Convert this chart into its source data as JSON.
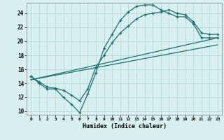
{
  "xlabel": "Humidex (Indice chaleur)",
  "bg_color": "#d8f0f0",
  "grid_color": "#b8d8d8",
  "line_color": "#1a7070",
  "xlim": [
    -0.5,
    23.5
  ],
  "ylim": [
    9.5,
    25.5
  ],
  "yticks": [
    10,
    12,
    14,
    16,
    18,
    20,
    22,
    24
  ],
  "xticks": [
    0,
    1,
    2,
    3,
    4,
    5,
    6,
    7,
    8,
    9,
    10,
    11,
    12,
    13,
    14,
    15,
    16,
    17,
    18,
    19,
    20,
    21,
    22,
    23
  ],
  "line1_x": [
    0,
    1,
    2,
    3,
    4,
    5,
    6,
    7,
    8,
    9,
    10,
    11,
    12,
    13,
    14,
    15,
    16,
    17,
    18,
    19,
    20,
    21,
    22,
    23
  ],
  "line1_y": [
    15.0,
    14.0,
    13.2,
    13.2,
    12.0,
    11.0,
    9.8,
    12.5,
    15.5,
    19.0,
    21.0,
    23.0,
    24.2,
    25.0,
    25.2,
    25.2,
    24.5,
    24.0,
    23.5,
    23.5,
    22.5,
    20.5,
    20.5,
    20.5
  ],
  "line2_x": [
    0,
    1,
    2,
    3,
    4,
    5,
    6,
    7,
    8,
    9,
    10,
    11,
    12,
    13,
    14,
    15,
    16,
    17,
    18,
    19,
    20,
    21,
    22,
    23
  ],
  "line2_y": [
    15.0,
    14.2,
    13.5,
    13.3,
    13.0,
    12.3,
    11.5,
    13.2,
    16.3,
    18.0,
    19.8,
    21.2,
    22.2,
    23.2,
    23.8,
    24.0,
    24.2,
    24.5,
    24.0,
    23.8,
    22.8,
    21.2,
    21.0,
    21.0
  ],
  "line3_x": [
    0,
    23
  ],
  "line3_y": [
    14.5,
    20.5
  ],
  "line4_x": [
    0,
    23
  ],
  "line4_y": [
    14.5,
    19.5
  ]
}
